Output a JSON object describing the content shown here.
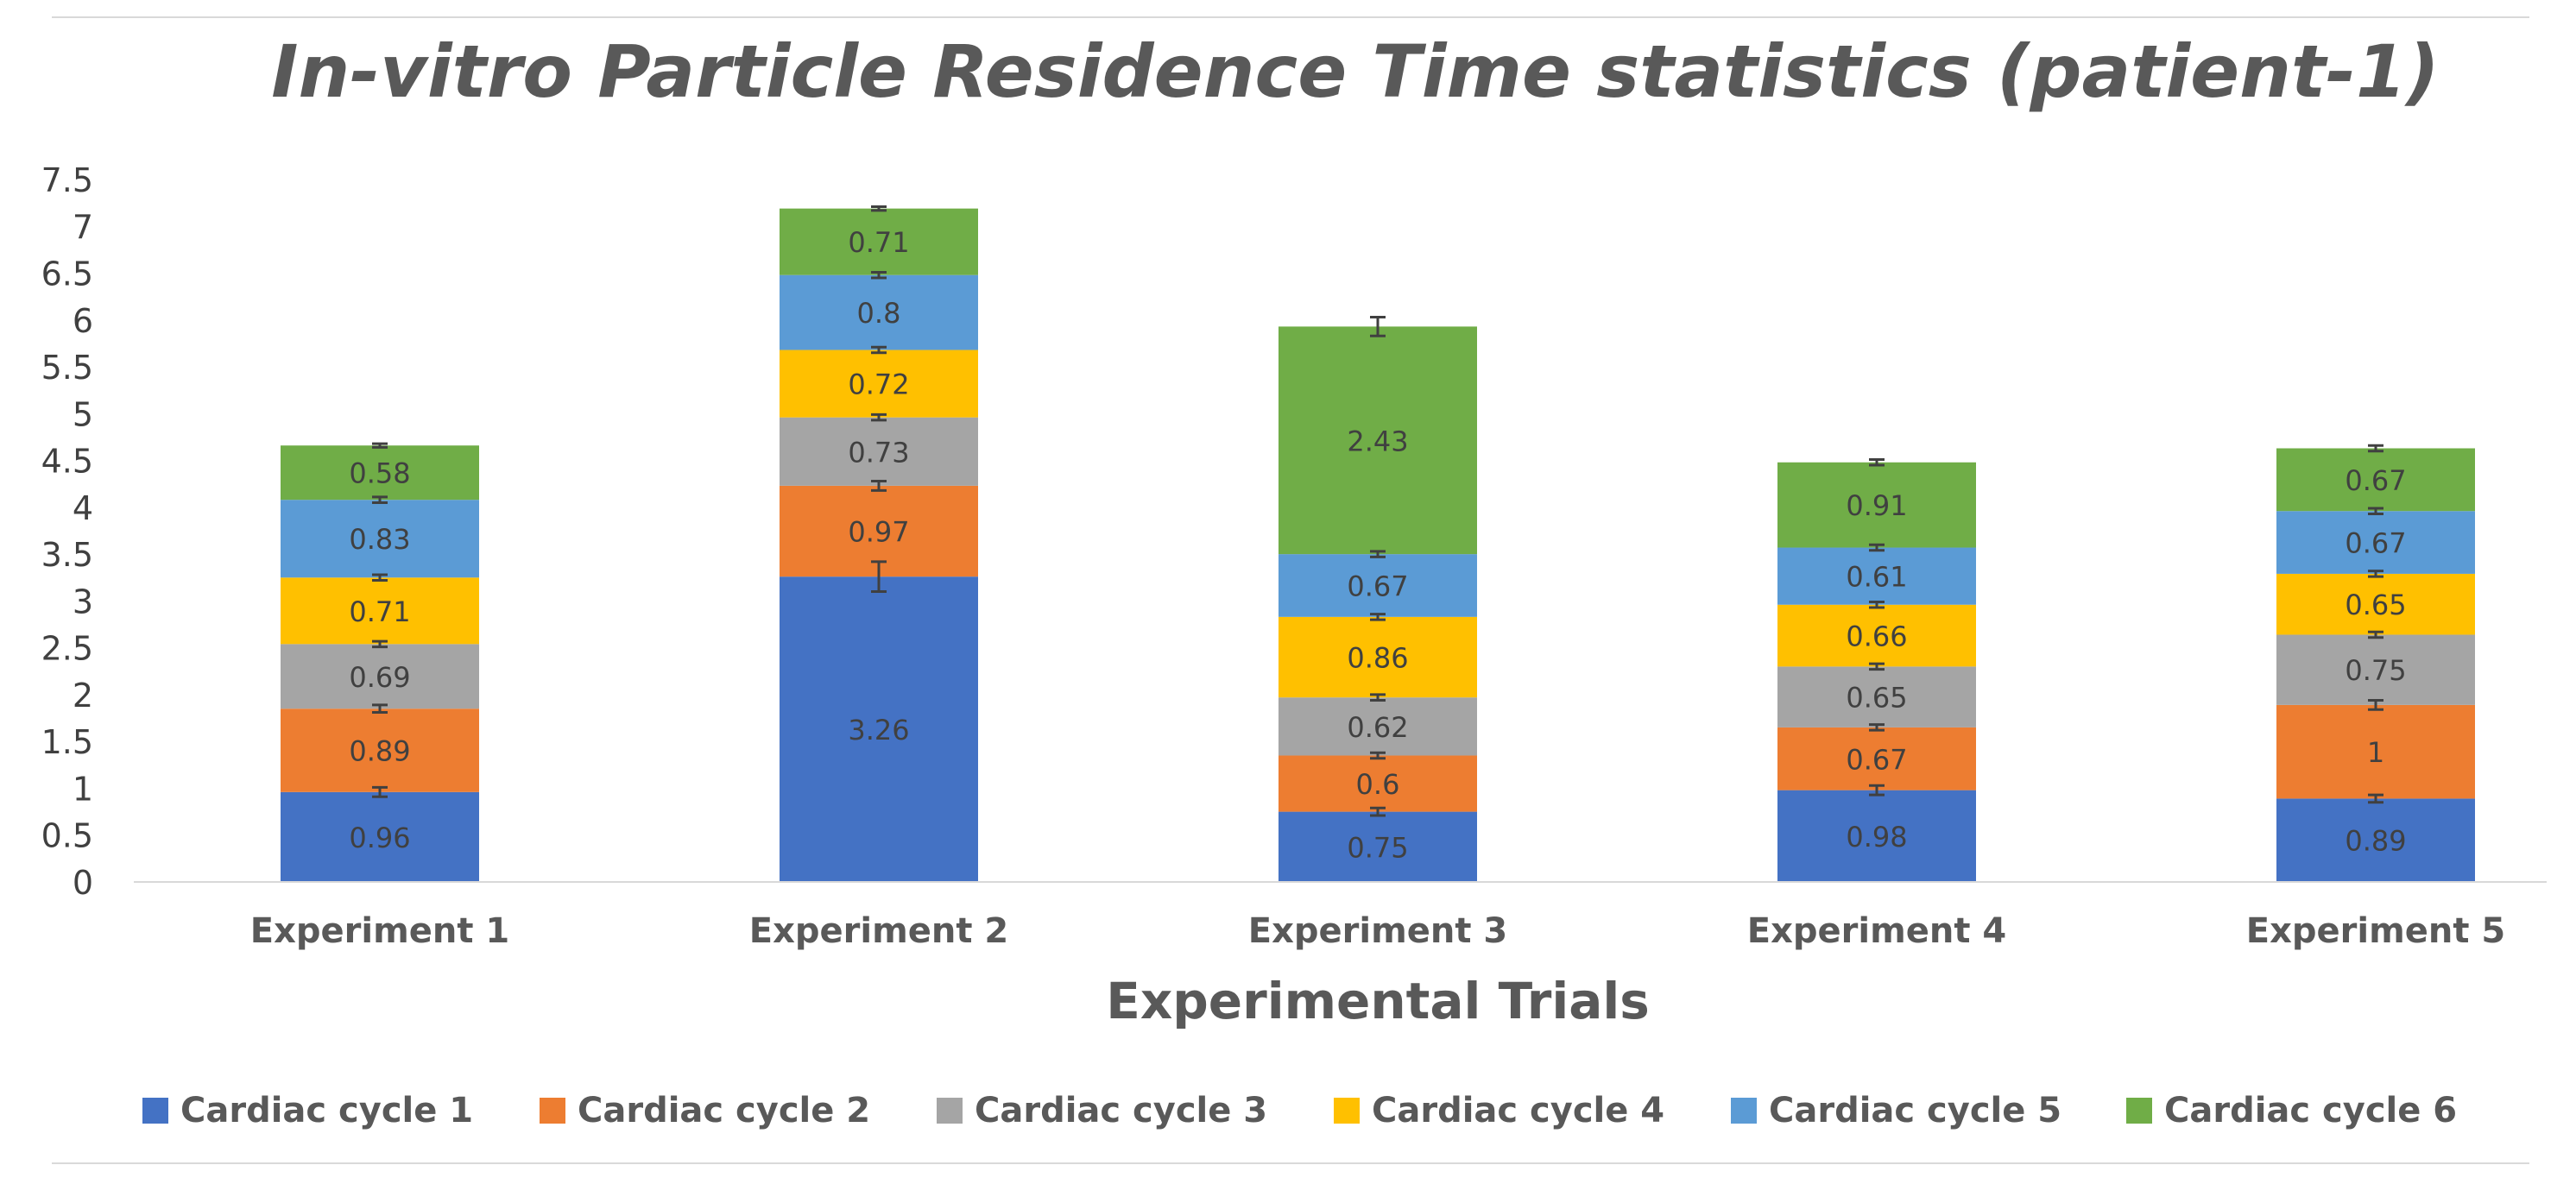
{
  "chart_data": {
    "type": "bar",
    "stacked": true,
    "title": "In-vitro Particle Residence Time statistics (patient-1)",
    "xlabel": "Experimental Trials",
    "ylabel": "",
    "ylim": [
      0,
      7.5
    ],
    "yticks": [
      "0",
      "0.5",
      "1",
      "1.5",
      "2",
      "2.5",
      "3",
      "3.5",
      "4",
      "4.5",
      "5",
      "5.5",
      "6",
      "6.5",
      "7",
      "7.5"
    ],
    "categories": [
      "Experiment 1",
      "Experiment 2",
      "Experiment 3",
      "Experiment 4",
      "Experiment 5"
    ],
    "legend_position": "bottom",
    "grid": false,
    "series": [
      {
        "name": "Cardiac cycle 1",
        "color": "#4472C4",
        "values": [
          0.96,
          3.26,
          0.75,
          0.98,
          0.89
        ],
        "labels": [
          "0.96",
          "3.26",
          "0.75",
          "0.98",
          "0.89"
        ],
        "errors": [
          0.05,
          0.16,
          0.04,
          0.05,
          0.04
        ]
      },
      {
        "name": "Cardiac cycle 2",
        "color": "#ED7D31",
        "values": [
          0.89,
          0.97,
          0.6,
          0.67,
          1
        ],
        "labels": [
          "0.89",
          "0.97",
          "0.6",
          "0.67",
          "1"
        ],
        "errors": [
          0.04,
          0.05,
          0.03,
          0.03,
          0.05
        ]
      },
      {
        "name": "Cardiac cycle 3",
        "color": "#A5A5A5",
        "values": [
          0.69,
          0.73,
          0.62,
          0.65,
          0.75
        ],
        "labels": [
          "0.69",
          "0.73",
          "0.62",
          "0.65",
          "0.75"
        ],
        "errors": [
          0.03,
          0.03,
          0.03,
          0.03,
          0.03
        ]
      },
      {
        "name": "Cardiac cycle 4",
        "color": "#FFC000",
        "values": [
          0.71,
          0.72,
          0.86,
          0.66,
          0.65
        ],
        "labels": [
          "0.71",
          "0.72",
          "0.86",
          "0.66",
          "0.65"
        ],
        "errors": [
          0.03,
          0.03,
          0.03,
          0.03,
          0.03
        ]
      },
      {
        "name": "Cardiac cycle 5",
        "color": "#5B9BD5",
        "values": [
          0.83,
          0.8,
          0.67,
          0.61,
          0.67
        ],
        "labels": [
          "0.83",
          "0.8",
          "0.67",
          "0.61",
          "0.67"
        ],
        "errors": [
          0.03,
          0.03,
          0.03,
          0.03,
          0.03
        ]
      },
      {
        "name": "Cardiac cycle 6",
        "color": "#70AD47",
        "values": [
          0.58,
          0.71,
          2.43,
          0.91,
          0.67
        ],
        "labels": [
          "0.58",
          "0.71",
          "2.43",
          "0.91",
          "0.67"
        ],
        "errors": [
          0.02,
          0.02,
          0.1,
          0.03,
          0.03
        ]
      }
    ]
  }
}
